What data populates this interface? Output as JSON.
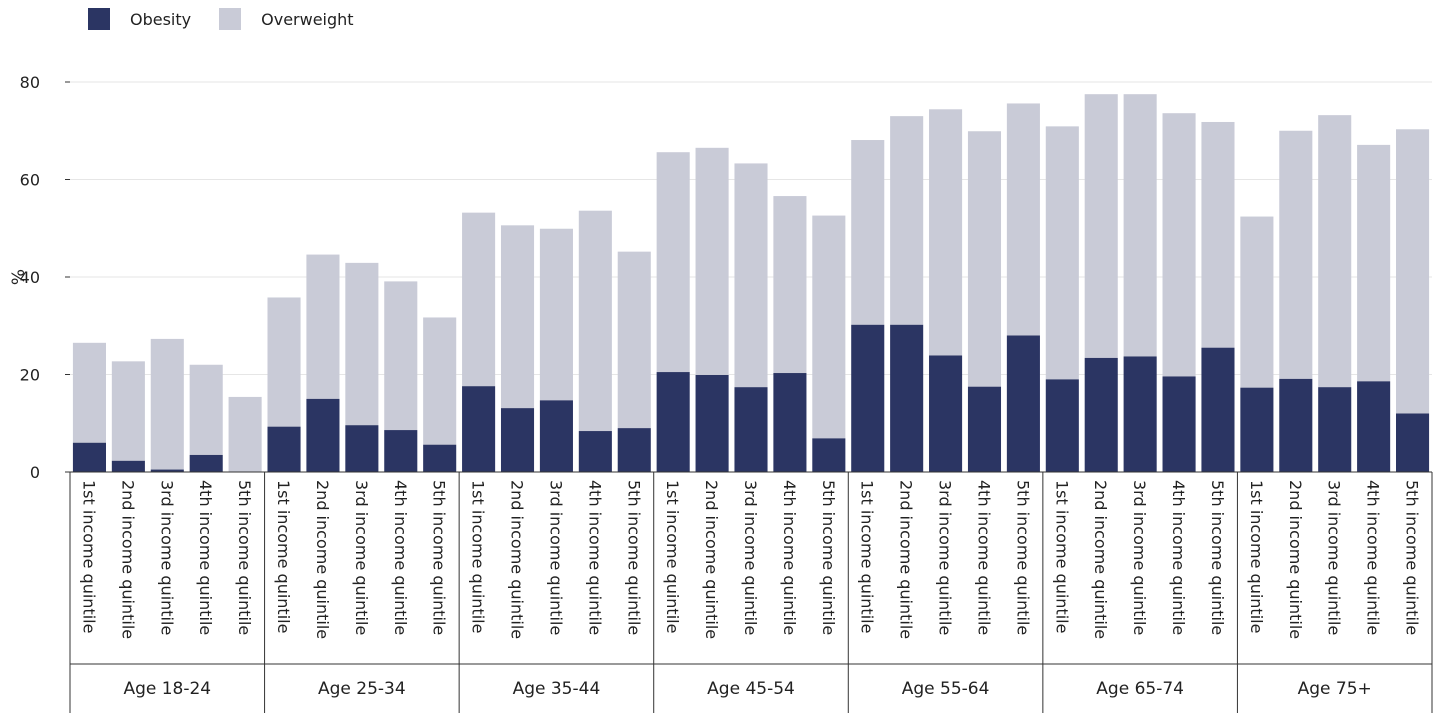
{
  "legend": {
    "obesity": "Obesity",
    "overweight": "Overweight"
  },
  "colors": {
    "obesity": "#2b3563",
    "overweight": "#c9cbd7",
    "grid": "#e6e6e6",
    "axis": "#333333"
  },
  "chart_data": {
    "type": "bar",
    "stacked": true,
    "ylabel": "%",
    "ylim": [
      0,
      80
    ],
    "yticks": [
      0,
      20,
      40,
      60,
      80
    ],
    "grid": true,
    "legend_position": "top-left",
    "categories": [
      "1st income quintile",
      "2nd income quintile",
      "3rd income quintile",
      "4th income quintile",
      "5th income quintile"
    ],
    "groups": [
      "Age 18-24",
      "Age 25-34",
      "Age 35-44",
      "Age 45-54",
      "Age 55-64",
      "Age 65-74",
      "Age 75+"
    ],
    "series": [
      {
        "name": "Obesity",
        "values": [
          [
            6.0,
            2.3,
            0.5,
            3.5,
            0.0
          ],
          [
            9.3,
            15.0,
            9.6,
            8.6,
            5.6
          ],
          [
            17.6,
            13.1,
            14.7,
            8.4,
            9.0
          ],
          [
            20.5,
            19.9,
            17.4,
            20.3,
            6.9
          ],
          [
            30.2,
            30.2,
            23.9,
            17.5,
            28.0
          ],
          [
            19.0,
            23.4,
            23.7,
            19.6,
            25.5
          ],
          [
            17.3,
            19.1,
            17.4,
            18.6,
            12.0
          ]
        ]
      },
      {
        "name": "Overweight",
        "values": [
          [
            20.5,
            20.4,
            26.8,
            18.5,
            15.4
          ],
          [
            26.5,
            29.6,
            33.3,
            30.5,
            26.1
          ],
          [
            35.6,
            37.5,
            35.2,
            45.2,
            36.2
          ],
          [
            45.1,
            46.6,
            45.9,
            36.3,
            45.7
          ],
          [
            37.9,
            42.8,
            50.5,
            52.4,
            47.6
          ],
          [
            51.9,
            54.1,
            53.8,
            54.0,
            46.3
          ],
          [
            35.1,
            50.9,
            55.8,
            48.5,
            58.3
          ]
        ]
      }
    ]
  }
}
